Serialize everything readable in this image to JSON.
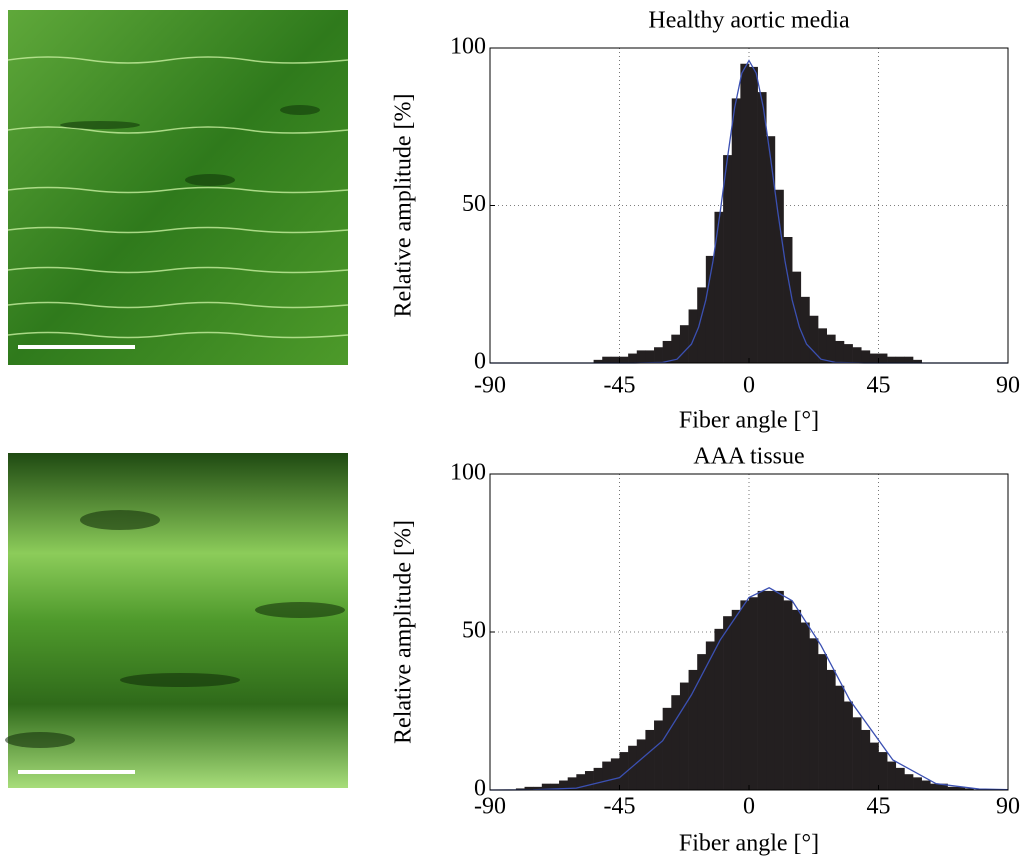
{
  "chart_data": [
    {
      "type": "histogram",
      "title": "Healthy aortic media",
      "xlabel": "Fiber angle [°]",
      "ylabel": "Relative amplitude [%]",
      "bins": [
        -90,
        -87,
        -84,
        -81,
        -78,
        -75,
        -72,
        -69,
        -66,
        -63,
        -60,
        -57,
        -54,
        -51,
        -48,
        -45,
        -42,
        -39,
        -36,
        -33,
        -30,
        -27,
        -24,
        -21,
        -18,
        -15,
        -12,
        -9,
        -6,
        -3,
        0,
        3,
        6,
        9,
        12,
        15,
        18,
        21,
        24,
        27,
        30,
        33,
        36,
        39,
        42,
        45,
        48,
        51,
        54,
        57,
        60,
        63,
        66,
        69,
        72,
        75,
        78,
        81,
        84,
        87,
        90
      ],
      "counts": [
        0,
        0,
        0,
        0,
        0,
        0,
        0,
        0,
        0,
        0,
        0,
        0,
        1,
        2,
        2,
        2,
        3,
        4,
        4,
        5,
        7,
        9,
        12,
        17,
        24,
        34,
        48,
        66,
        84,
        95,
        94,
        86,
        72,
        55,
        40,
        29,
        21,
        15,
        11,
        9,
        7,
        6,
        5,
        4,
        3,
        3,
        2,
        2,
        2,
        1,
        0,
        0,
        0,
        0,
        0,
        0,
        0,
        0,
        0,
        0
      ],
      "color": "#231f20",
      "fit": {
        "type": "line",
        "color": "#3b50b2",
        "x": [
          -90,
          -60,
          -40,
          -30,
          -25,
          -20,
          -17.5,
          -15,
          -12.5,
          -10,
          -7.5,
          -5,
          -2.5,
          0,
          2.5,
          5,
          7.5,
          10,
          12.5,
          15,
          17.5,
          20,
          25,
          30,
          40,
          60,
          90
        ],
        "values": [
          0,
          0,
          0,
          0.2,
          1.2,
          6,
          11.4,
          20,
          32.4,
          48,
          65,
          81,
          92,
          96,
          92,
          81,
          65,
          48,
          32.4,
          20,
          11.4,
          6,
          1.2,
          0.2,
          0,
          0,
          0
        ]
      },
      "xlim": [
        -90,
        90
      ],
      "ylim": [
        0,
        100
      ],
      "xticks": [
        -90,
        -45,
        0,
        45,
        90
      ],
      "yticks": [
        0,
        50,
        100
      ],
      "grid": true
    },
    {
      "type": "histogram",
      "title": "AAA tissue",
      "xlabel": "Fiber angle [°]",
      "ylabel": "Relative amplitude [%]",
      "bins": [
        -90,
        -87,
        -84,
        -81,
        -78,
        -75,
        -72,
        -69,
        -66,
        -63,
        -60,
        -57,
        -54,
        -51,
        -48,
        -45,
        -42,
        -39,
        -36,
        -33,
        -30,
        -27,
        -24,
        -21,
        -18,
        -15,
        -12,
        -9,
        -6,
        -3,
        0,
        3,
        6,
        9,
        12,
        15,
        18,
        21,
        24,
        27,
        30,
        33,
        36,
        39,
        42,
        45,
        48,
        51,
        54,
        57,
        60,
        63,
        66,
        69,
        72,
        75,
        78,
        81,
        84,
        87,
        90
      ],
      "counts": [
        0,
        0,
        0,
        0.5,
        1,
        1,
        2,
        2,
        3,
        4,
        5,
        6,
        7,
        9,
        10,
        12,
        14,
        16,
        19,
        22,
        26,
        30,
        34,
        38,
        43,
        47,
        51,
        55,
        57,
        60,
        61,
        63,
        63,
        63,
        60,
        57,
        53,
        48,
        43,
        38,
        33,
        28,
        23,
        19,
        15,
        12,
        9,
        7,
        5,
        4,
        3,
        2,
        2,
        1,
        1,
        0.5,
        0,
        0,
        0,
        0
      ],
      "color": "#231f20",
      "fit": {
        "type": "line",
        "color": "#3b50b2",
        "x": [
          -90,
          -75,
          -60,
          -45,
          -30,
          -20,
          -10,
          0,
          7,
          15,
          25,
          35,
          50,
          65,
          80,
          90
        ],
        "values": [
          0,
          0.06,
          0.6,
          3.9,
          15.6,
          30.1,
          47.5,
          60.9,
          64,
          59.9,
          45.8,
          28.5,
          9.5,
          2,
          0.3,
          0.1
        ]
      },
      "xlim": [
        -90,
        90
      ],
      "ylim": [
        0,
        100
      ],
      "xticks": [
        -90,
        -45,
        0,
        45,
        90
      ],
      "yticks": [
        0,
        50,
        100
      ],
      "grid": true
    }
  ]
}
